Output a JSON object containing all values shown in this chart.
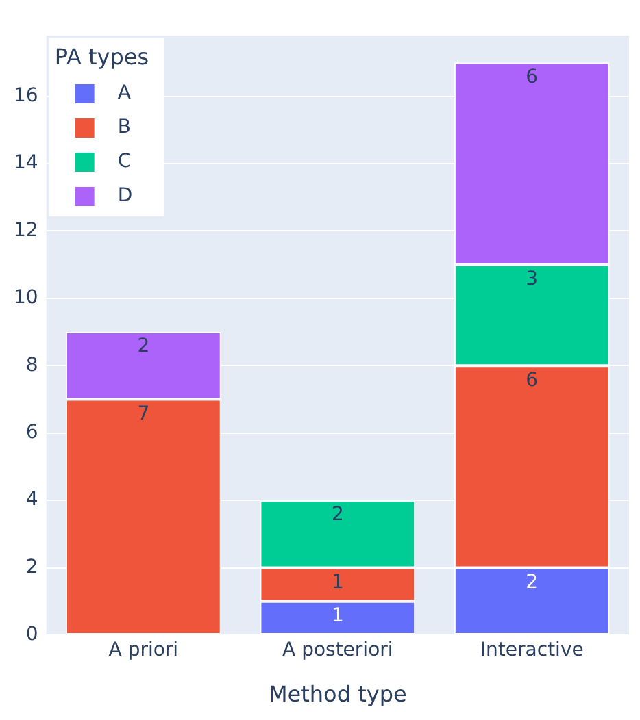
{
  "chart_data": {
    "type": "bar",
    "stacked": true,
    "xlabel": "Method type",
    "legend_title": "PA types",
    "categories": [
      "A priori",
      "A posteriori",
      "Interactive"
    ],
    "series": [
      {
        "name": "A",
        "color": "#636efa",
        "values": [
          null,
          1,
          2
        ]
      },
      {
        "name": "B",
        "color": "#ef553b",
        "values": [
          7,
          1,
          6
        ]
      },
      {
        "name": "C",
        "color": "#00cc96",
        "values": [
          null,
          2,
          3
        ]
      },
      {
        "name": "D",
        "color": "#ab63fa",
        "values": [
          2,
          null,
          6
        ]
      }
    ],
    "ylim": [
      0,
      17.8
    ],
    "yticks": [
      0,
      2,
      4,
      6,
      8,
      10,
      12,
      14,
      16
    ],
    "grid": "y",
    "legend": "top left",
    "data_labels": true
  }
}
